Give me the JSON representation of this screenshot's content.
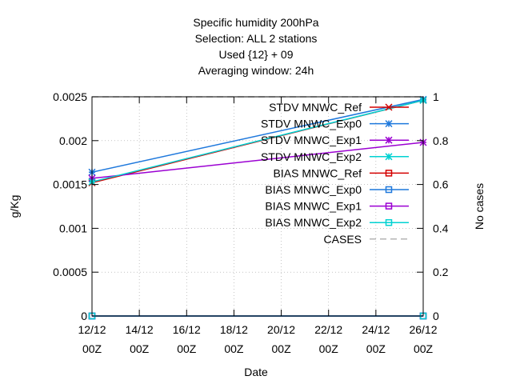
{
  "chart_data": {
    "type": "line",
    "title_lines": [
      "Specific humidity 200hPa",
      "Selection: ALL      2 stations",
      "Used {12} + 09",
      "Averaging window: 24h"
    ],
    "xlabel": "Date",
    "ylabel": "g/Kg",
    "y2label": "No cases",
    "x": [
      0,
      14
    ],
    "xlim": [
      0,
      14
    ],
    "xticks": [
      {
        "value": 0,
        "line1": "12/12",
        "line2": "00Z"
      },
      {
        "value": 2,
        "line1": "14/12",
        "line2": "00Z"
      },
      {
        "value": 4,
        "line1": "16/12",
        "line2": "00Z"
      },
      {
        "value": 6,
        "line1": "18/12",
        "line2": "00Z"
      },
      {
        "value": 8,
        "line1": "20/12",
        "line2": "00Z"
      },
      {
        "value": 10,
        "line1": "22/12",
        "line2": "00Z"
      },
      {
        "value": 12,
        "line1": "24/12",
        "line2": "00Z"
      },
      {
        "value": 14,
        "line1": "26/12",
        "line2": "00Z"
      }
    ],
    "ylim": [
      0,
      0.0025
    ],
    "yticks": [
      {
        "value": 0,
        "label": "0"
      },
      {
        "value": 0.0005,
        "label": "0.0005"
      },
      {
        "value": 0.001,
        "label": "0.001"
      },
      {
        "value": 0.0015,
        "label": "0.0015"
      },
      {
        "value": 0.002,
        "label": "0.002"
      },
      {
        "value": 0.0025,
        "label": "0.0025"
      }
    ],
    "y2lim": [
      0,
      1
    ],
    "y2ticks": [
      {
        "value": 0,
        "label": "0"
      },
      {
        "value": 0.2,
        "label": "0.2"
      },
      {
        "value": 0.4,
        "label": "0.4"
      },
      {
        "value": 0.6,
        "label": "0.6"
      },
      {
        "value": 0.8,
        "label": "0.8"
      },
      {
        "value": 1,
        "label": "1"
      }
    ],
    "series": [
      {
        "name": "STDV MNWC_Ref",
        "color": "#d40000",
        "marker": "cross",
        "axis": "y",
        "values": [
          0.00152,
          0.00246
        ]
      },
      {
        "name": "STDV MNWC_Exp0",
        "color": "#1e78dc",
        "marker": "star",
        "axis": "y",
        "values": [
          0.00164,
          0.00247
        ]
      },
      {
        "name": "STDV MNWC_Exp1",
        "color": "#9b00d2",
        "marker": "star",
        "axis": "y",
        "values": [
          0.00157,
          0.00198
        ]
      },
      {
        "name": "STDV MNWC_Exp2",
        "color": "#00d2d2",
        "marker": "star",
        "axis": "y",
        "values": [
          0.00153,
          0.00246
        ]
      },
      {
        "name": "BIAS MNWC_Ref",
        "color": "#d40000",
        "marker": "square",
        "axis": "y",
        "values": [
          0,
          0
        ]
      },
      {
        "name": "BIAS MNWC_Exp0",
        "color": "#1e78dc",
        "marker": "square",
        "axis": "y",
        "values": [
          0,
          0
        ]
      },
      {
        "name": "BIAS MNWC_Exp1",
        "color": "#9b00d2",
        "marker": "square",
        "axis": "y",
        "values": [
          0,
          0
        ]
      },
      {
        "name": "BIAS MNWC_Exp2",
        "color": "#00d2d2",
        "marker": "square",
        "axis": "y",
        "values": [
          0,
          0
        ]
      },
      {
        "name": "CASES",
        "color": "#b4b4b4",
        "marker": "none",
        "axis": "y2",
        "dashed": true,
        "values": [
          1,
          1
        ]
      }
    ]
  }
}
